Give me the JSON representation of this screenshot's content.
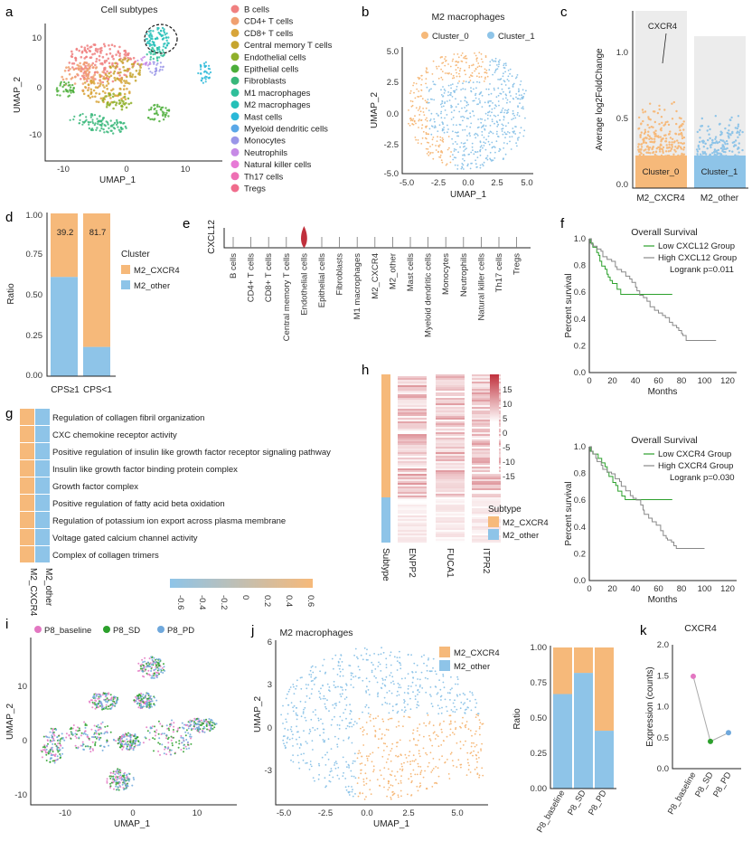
{
  "panel_letters": [
    "a",
    "b",
    "c",
    "d",
    "e",
    "f",
    "g",
    "h",
    "i",
    "j",
    "k"
  ],
  "colors": {
    "orange": "#f6b97a",
    "blue": "#8ec4e8",
    "green": "#2ca02c",
    "gray": "#888888",
    "pink": "#e377c2",
    "red": "#c0303c"
  },
  "panel_a": {
    "title": "Cell subtypes",
    "xlabel": "UMAP_1",
    "ylabel": "UMAP_2",
    "xticks": [
      "-10",
      "0",
      "10"
    ],
    "yticks": [
      "10",
      "0",
      "-10"
    ],
    "legend": [
      {
        "label": "B cells",
        "color": "#f08080"
      },
      {
        "label": "CD4+ T cells",
        "color": "#f0a070"
      },
      {
        "label": "CD8+ T cells",
        "color": "#d8a53a"
      },
      {
        "label": "Central memory T cells",
        "color": "#c6a52e"
      },
      {
        "label": "Endothelial cells",
        "color": "#8fb02a"
      },
      {
        "label": "Epithelial cells",
        "color": "#4cae3a"
      },
      {
        "label": "Fibroblasts",
        "color": "#38b77a"
      },
      {
        "label": "M1 macrophages",
        "color": "#2fbf9a"
      },
      {
        "label": "M2 macrophages",
        "color": "#25c0b8"
      },
      {
        "label": "Mast cells",
        "color": "#2ab8d8"
      },
      {
        "label": "Myeloid dendritic cells",
        "color": "#5aa8e8"
      },
      {
        "label": "Monocytes",
        "color": "#9a96e8"
      },
      {
        "label": "Neutrophils",
        "color": "#c78ae6"
      },
      {
        "label": "Natural killer cells",
        "color": "#e77ad6"
      },
      {
        "label": "Th17 cells",
        "color": "#ee70b4"
      },
      {
        "label": "Tregs",
        "color": "#f06c8c"
      }
    ]
  },
  "panel_b": {
    "title": "M2 macrophages",
    "xlabel": "UMAP_1",
    "ylabel": "UMAP_2",
    "legend": [
      "Cluster_0",
      "Cluster_1"
    ],
    "xticks": [
      "-5.0",
      "-2.5",
      "0.0",
      "2.5",
      "5.0"
    ],
    "yticks": [
      "5.0",
      "2.5",
      "0.0",
      "-2.5",
      "-5.0"
    ]
  },
  "panel_c": {
    "ylabel": "Average log2FoldChange",
    "yticks": [
      "1.0",
      "0.5",
      "0.0"
    ],
    "annotation": "CXCR4",
    "boxes": [
      "Cluster_0",
      "Cluster_1"
    ],
    "categories": [
      "M2_CXCR4",
      "M2_other"
    ]
  },
  "panel_d": {
    "ylabel": "Ratio",
    "yticks": [
      "1.00",
      "0.75",
      "0.50",
      "0.25",
      "0.00"
    ],
    "legend_title": "Cluster",
    "legend": [
      "M2_CXCR4",
      "M2_other"
    ],
    "chart_data": {
      "type": "bar",
      "categories": [
        "CPS≥1",
        "CPS<1"
      ],
      "series": [
        {
          "name": "M2_CXCR4",
          "values": [
            0.39,
            0.82
          ]
        },
        {
          "name": "M2_other",
          "values": [
            0.61,
            0.18
          ]
        }
      ],
      "labels": [
        "39.2",
        "81.7"
      ],
      "ylim": [
        0,
        1
      ]
    }
  },
  "panel_e": {
    "ylabel": "CXCL12",
    "categories": [
      "B cells",
      "CD4+ T cells",
      "CD8+ T cells",
      "Central memory T cells",
      "Endothelial cells",
      "Epithelial cells",
      "Fibroblasts",
      "M1 macrophages",
      "M2_CXCR4",
      "M2_other",
      "Mast cells",
      "Myeloid dendritic cells",
      "Monocytes",
      "Neutrophils",
      "Natural killer cells",
      "Th17 cells",
      "Tregs"
    ]
  },
  "panel_f": {
    "plots": [
      {
        "title": "Overall Survival",
        "legend": [
          "Low CXCL12 Group",
          "High CXCL12 Group"
        ],
        "pvalue": "Logrank p=0.011",
        "xticks": [
          "0",
          "20",
          "40",
          "60",
          "80",
          "100",
          "120"
        ]
      },
      {
        "title": "Overall Survival",
        "legend": [
          "Low CXCR4 Group",
          "High CXCR4 Group"
        ],
        "pvalue": "Logrank p=0.030",
        "xticks": [
          "0",
          "20",
          "40",
          "60",
          "80",
          "100",
          "120"
        ]
      }
    ],
    "ylabel": "Percent survival",
    "xlabel": "Months",
    "yticks": [
      "1.0",
      "0.8",
      "0.6",
      "0.4",
      "0.2",
      "0.0"
    ]
  },
  "panel_g": {
    "terms": [
      "Regulation of collagen fibril organization",
      "CXC chemokine receptor activity",
      "Positive regulation of insulin like growth factor receptor signaling pathway",
      "Insulin like growth factor binding protein complex",
      "Growth factor complex",
      "Positive regulation of fatty acid beta oxidation",
      "Regulation of potassium ion export across plasma membrane",
      "Voltage gated calcium channel activity",
      "Complex of collagen trimers"
    ],
    "columns": [
      "M2_CXCR4",
      "M2_other"
    ],
    "scale_ticks": [
      "-0.6",
      "-0.4",
      "-0.2",
      "0",
      "0.2",
      "0.4",
      "0.6"
    ]
  },
  "panel_h": {
    "columns": [
      "Subtype",
      "ENPP2",
      "FUCA1",
      "ITPR2"
    ],
    "scale_ticks": [
      "15",
      "10",
      "5",
      "0",
      "-5",
      "-10",
      "-15"
    ],
    "legend_title": "Subtype",
    "legend": [
      "M2_CXCR4",
      "M2_other"
    ]
  },
  "panel_i": {
    "legend": [
      "P8_baseline",
      "P8_SD",
      "P8_PD"
    ],
    "xlabel": "UMAP_1",
    "ylabel": "UMAP_2",
    "xticks": [
      "-10",
      "0",
      "10"
    ],
    "yticks": [
      "10",
      "0",
      "-10"
    ]
  },
  "panel_j": {
    "title": "M2 macrophages",
    "xlabel": "UMAP_1",
    "ylabel": "UMAP_2",
    "legend": [
      "M2_CXCR4",
      "M2_other"
    ],
    "xticks": [
      "-5.0",
      "-2.5",
      "0.0",
      "2.5",
      "5.0"
    ],
    "yticks": [
      "6",
      "3",
      "0",
      "-3"
    ],
    "bar_ylabel": "Ratio",
    "bar_yticks": [
      "1.00",
      "0.75",
      "0.50",
      "0.25",
      "0.00"
    ],
    "chart_data": {
      "type": "bar",
      "categories": [
        "P8_baseline",
        "P8_SD",
        "P8_PD"
      ],
      "series": [
        {
          "name": "M2_CXCR4",
          "values": [
            0.33,
            0.18,
            0.59
          ]
        },
        {
          "name": "M2_other",
          "values": [
            0.67,
            0.82,
            0.41
          ]
        }
      ],
      "ylim": [
        0,
        1
      ]
    }
  },
  "panel_k": {
    "title": "CXCR4",
    "ylabel": "Expression (counts)",
    "yticks": [
      "2.0",
      "1.5",
      "1.0",
      "0.5",
      "0.0"
    ],
    "chart_data": {
      "type": "line",
      "categories": [
        "P8_baseline",
        "P8_SD",
        "P8_PD"
      ],
      "values": [
        1.49,
        0.44,
        0.58
      ],
      "ylim": [
        0,
        2
      ]
    }
  }
}
